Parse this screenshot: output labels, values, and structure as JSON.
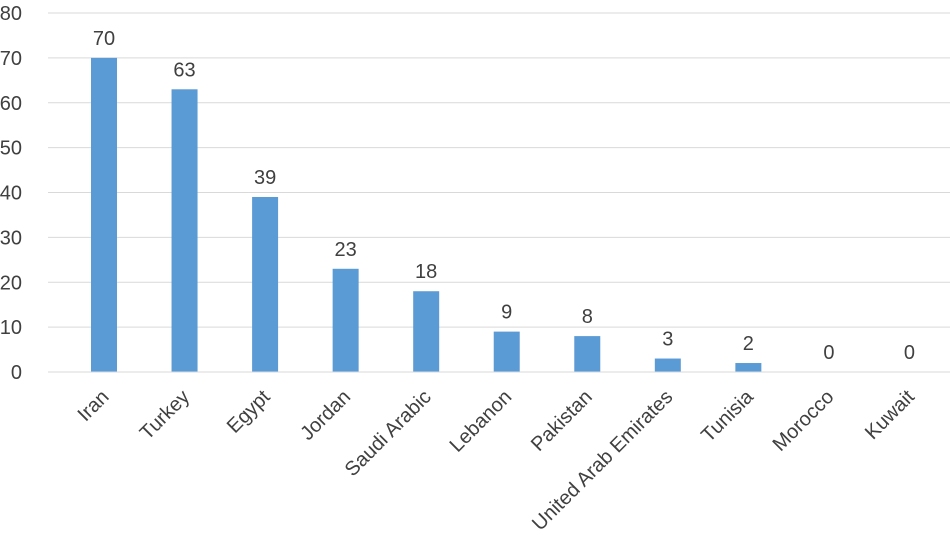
{
  "chart_data": {
    "type": "bar",
    "title": "",
    "xlabel": "",
    "ylabel": "",
    "categories": [
      "Iran",
      "Turkey",
      "Egypt",
      "Jordan",
      "Saudi Arabic",
      "Lebanon",
      "Pakistan",
      "United Arab Emirates",
      "Tunisia",
      "Morocco",
      "Kuwait"
    ],
    "values": [
      70,
      63,
      39,
      23,
      18,
      9,
      8,
      3,
      2,
      0,
      0
    ],
    "ylim": [
      0,
      80
    ],
    "yticks": [
      0,
      10,
      20,
      30,
      40,
      50,
      60,
      70,
      80
    ],
    "grid": true,
    "legend": "none",
    "bar_color": "#5b9bd5",
    "data_labels": true
  }
}
